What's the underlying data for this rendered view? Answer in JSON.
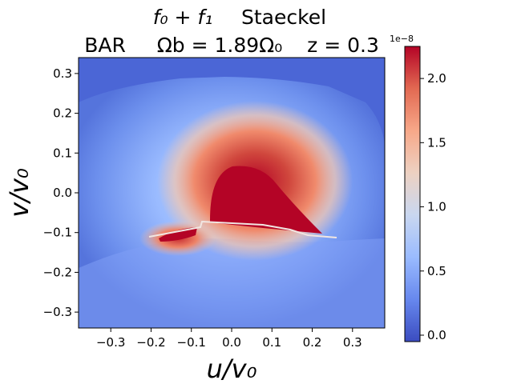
{
  "chart_data": {
    "type": "heatmap",
    "title_line1": {
      "part_a": "f₀ + f₁",
      "part_b": "Staeckel"
    },
    "title_line2": {
      "part_a": "BAR",
      "part_b": "Ωb = 1.89Ω₀",
      "part_c": "z = 0.3"
    },
    "xlabel": "u/v₀",
    "ylabel": "v/v₀",
    "xlim": [
      -0.38,
      0.38
    ],
    "ylim": [
      -0.34,
      0.34
    ],
    "xticks": [
      -0.3,
      -0.2,
      -0.1,
      0.0,
      0.1,
      0.2,
      0.3
    ],
    "xtick_labels": [
      "−0.3",
      "−0.2",
      "−0.1",
      "0.0",
      "0.1",
      "0.2",
      "0.3"
    ],
    "yticks": [
      0.3,
      0.2,
      0.1,
      0.0,
      -0.1,
      -0.2,
      -0.3
    ],
    "ytick_labels": [
      "0.3",
      "0.2",
      "0.1",
      "0.0",
      "−0.1",
      "−0.2",
      "−0.3"
    ],
    "colormap": "coolwarm",
    "colorbar": {
      "range": [
        -0.05,
        2.25
      ],
      "ticks": [
        0.0,
        0.5,
        1.0,
        1.5,
        2.0
      ],
      "tick_labels": [
        "0.0",
        "0.5",
        "1.0",
        "1.5",
        "2.0"
      ],
      "offset_text": "1e−8"
    },
    "colormap_stops": [
      "#3b4cc0",
      "#6788ee",
      "#9abbff",
      "#c9d7f0",
      "#edd1c2",
      "#f7a889",
      "#e26952",
      "#b40426"
    ]
  }
}
